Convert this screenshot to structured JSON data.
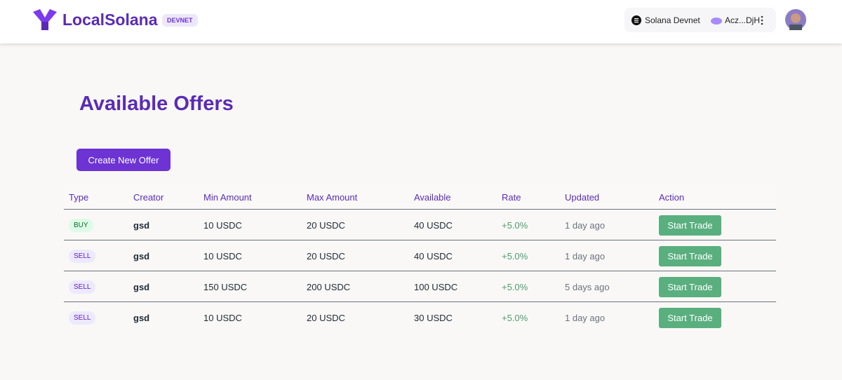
{
  "header": {
    "brand": "LocalSolana",
    "badge": "DEVNET",
    "network": "Solana Devnet",
    "wallet": "Acz...DjH"
  },
  "page": {
    "title": "Available Offers",
    "create_button": "Create New Offer"
  },
  "table": {
    "columns": [
      "Type",
      "Creator",
      "Min Amount",
      "Max Amount",
      "Available",
      "Rate",
      "Updated",
      "Action"
    ],
    "rows": [
      [
        "BUY",
        "gsd",
        "10 USDC",
        "20 USDC",
        "40 USDC",
        "+5.0%",
        "1 day ago",
        "Start Trade"
      ],
      [
        "SELL",
        "gsd",
        "10 USDC",
        "20 USDC",
        "40 USDC",
        "+5.0%",
        "1 day ago",
        "Start Trade"
      ],
      [
        "SELL",
        "gsd",
        "150 USDC",
        "200 USDC",
        "100 USDC",
        "+5.0%",
        "5 days ago",
        "Start Trade"
      ],
      [
        "SELL",
        "gsd",
        "10 USDC",
        "20 USDC",
        "30 USDC",
        "+5.0%",
        "1 day ago",
        "Start Trade"
      ]
    ]
  }
}
